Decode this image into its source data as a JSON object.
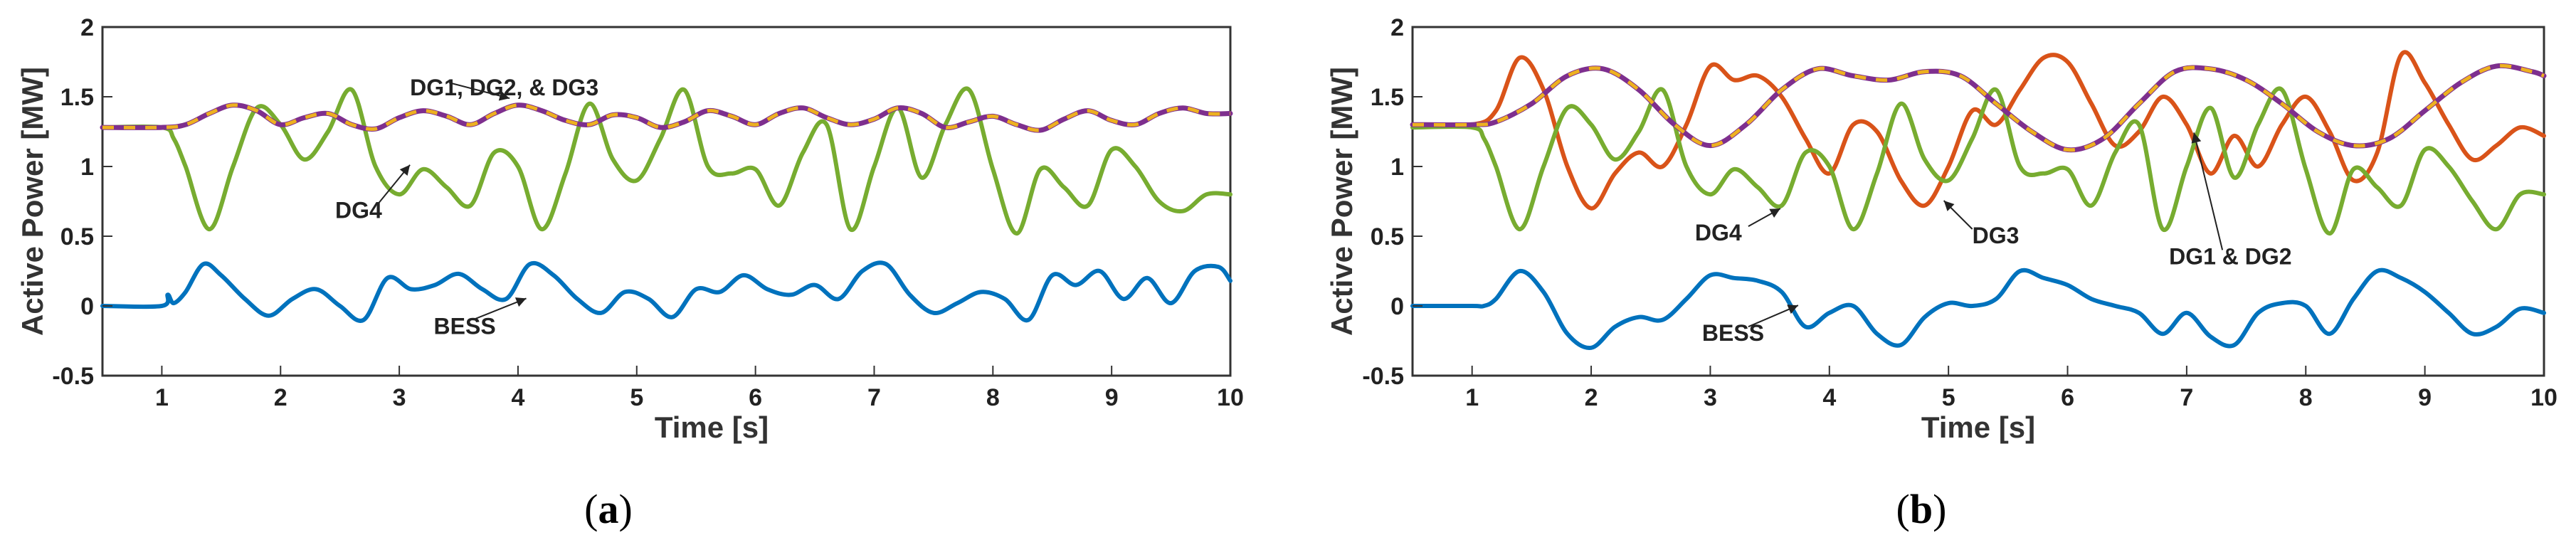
{
  "chart_data": [
    {
      "type": "line",
      "panel_label": "a",
      "xlabel": "Time [s]",
      "ylabel": "Active Power [MW]",
      "xlim": [
        0.5,
        10
      ],
      "ylim": [
        -0.5,
        2
      ],
      "xticks": [
        1,
        2,
        3,
        4,
        5,
        6,
        7,
        8,
        9,
        10
      ],
      "yticks": [
        -0.5,
        0,
        0.5,
        1,
        1.5,
        2
      ],
      "series": [
        {
          "name": "DG1, DG2, & DG3",
          "style": "dashed",
          "color": "#7e2f8e",
          "dash_color": "#edb120",
          "x": [
            0.5,
            1.0,
            1.2,
            1.4,
            1.6,
            1.8,
            2.0,
            2.2,
            2.4,
            2.6,
            2.8,
            3.0,
            3.2,
            3.4,
            3.6,
            3.8,
            4.0,
            4.2,
            4.4,
            4.6,
            4.8,
            5.0,
            5.2,
            5.4,
            5.6,
            5.8,
            6.0,
            6.2,
            6.4,
            6.6,
            6.8,
            7.0,
            7.2,
            7.4,
            7.6,
            7.8,
            8.0,
            8.2,
            8.4,
            8.6,
            8.8,
            9.0,
            9.2,
            9.4,
            9.6,
            9.8,
            10.0
          ],
          "y": [
            1.28,
            1.28,
            1.3,
            1.38,
            1.44,
            1.4,
            1.3,
            1.35,
            1.38,
            1.3,
            1.27,
            1.35,
            1.4,
            1.36,
            1.3,
            1.38,
            1.44,
            1.4,
            1.33,
            1.3,
            1.37,
            1.35,
            1.28,
            1.32,
            1.4,
            1.36,
            1.3,
            1.38,
            1.42,
            1.35,
            1.3,
            1.34,
            1.42,
            1.38,
            1.28,
            1.32,
            1.36,
            1.3,
            1.26,
            1.34,
            1.4,
            1.33,
            1.3,
            1.38,
            1.42,
            1.38,
            1.38
          ]
        },
        {
          "name": "DG4",
          "style": "solid",
          "color": "#77ac30",
          "x": [
            0.5,
            1.0,
            1.1,
            1.2,
            1.4,
            1.6,
            1.8,
            2.0,
            2.2,
            2.4,
            2.6,
            2.8,
            3.0,
            3.2,
            3.4,
            3.6,
            3.8,
            4.0,
            4.2,
            4.4,
            4.6,
            4.8,
            5.0,
            5.2,
            5.4,
            5.6,
            5.8,
            6.0,
            6.2,
            6.4,
            6.6,
            6.8,
            7.0,
            7.2,
            7.4,
            7.6,
            7.8,
            8.0,
            8.2,
            8.4,
            8.6,
            8.8,
            9.0,
            9.2,
            9.4,
            9.6,
            9.8,
            10.0
          ],
          "y": [
            1.28,
            1.28,
            1.2,
            1.0,
            0.55,
            1.0,
            1.42,
            1.3,
            1.05,
            1.25,
            1.55,
            1.0,
            0.8,
            0.98,
            0.85,
            0.72,
            1.1,
            1.0,
            0.55,
            0.95,
            1.45,
            1.05,
            0.9,
            1.2,
            1.55,
            1.0,
            0.95,
            0.98,
            0.72,
            1.1,
            1.3,
            0.55,
            1.0,
            1.42,
            0.92,
            1.3,
            1.55,
            0.98,
            0.52,
            0.98,
            0.85,
            0.72,
            1.12,
            1.0,
            0.75,
            0.68,
            0.8,
            0.8
          ]
        },
        {
          "name": "BESS",
          "style": "solid",
          "color": "#0072bd",
          "x": [
            0.5,
            1.0,
            1.05,
            1.1,
            1.2,
            1.35,
            1.5,
            1.7,
            1.9,
            2.1,
            2.3,
            2.5,
            2.7,
            2.9,
            3.1,
            3.3,
            3.5,
            3.7,
            3.9,
            4.1,
            4.3,
            4.5,
            4.7,
            4.9,
            5.1,
            5.3,
            5.5,
            5.7,
            5.9,
            6.1,
            6.3,
            6.5,
            6.7,
            6.9,
            7.1,
            7.3,
            7.5,
            7.7,
            7.9,
            8.1,
            8.3,
            8.5,
            8.7,
            8.9,
            9.1,
            9.3,
            9.5,
            9.7,
            9.9,
            10.0
          ],
          "y": [
            0.0,
            0.0,
            0.08,
            0.02,
            0.1,
            0.3,
            0.22,
            0.05,
            -0.07,
            0.05,
            0.12,
            0.0,
            -0.1,
            0.2,
            0.12,
            0.15,
            0.23,
            0.12,
            0.05,
            0.3,
            0.22,
            0.05,
            -0.05,
            0.1,
            0.05,
            -0.08,
            0.12,
            0.1,
            0.22,
            0.12,
            0.08,
            0.15,
            0.05,
            0.25,
            0.3,
            0.08,
            -0.05,
            0.02,
            0.1,
            0.05,
            -0.1,
            0.22,
            0.15,
            0.25,
            0.05,
            0.2,
            0.02,
            0.25,
            0.28,
            0.18
          ]
        }
      ],
      "annotations": [
        {
          "text": "DG1, DG2, & DG3",
          "x": 3.3,
          "y": 1.55
        },
        {
          "text": "DG4",
          "x": 2.7,
          "y": 0.68
        },
        {
          "text": "BESS",
          "x": 3.5,
          "y": -0.15
        }
      ]
    },
    {
      "type": "line",
      "panel_label": "b",
      "xlabel": "Time [s]",
      "ylabel": "Active Power [MW]",
      "xlim": [
        0.5,
        10
      ],
      "ylim": [
        -0.5,
        2
      ],
      "xticks": [
        1,
        2,
        3,
        4,
        5,
        6,
        7,
        8,
        9,
        10
      ],
      "yticks": [
        -0.5,
        0,
        0.5,
        1,
        1.5,
        2
      ],
      "series": [
        {
          "name": "DG1 & DG2",
          "style": "dashed",
          "color": "#7e2f8e",
          "dash_color": "#edb120",
          "x": [
            0.5,
            1.0,
            1.2,
            1.5,
            1.8,
            2.1,
            2.4,
            2.7,
            3.0,
            3.3,
            3.6,
            3.9,
            4.2,
            4.5,
            4.8,
            5.1,
            5.4,
            5.7,
            6.0,
            6.3,
            6.6,
            6.9,
            7.2,
            7.5,
            7.8,
            8.1,
            8.4,
            8.7,
            9.0,
            9.3,
            9.6,
            9.9,
            10.0
          ],
          "y": [
            1.3,
            1.3,
            1.32,
            1.45,
            1.65,
            1.7,
            1.55,
            1.3,
            1.15,
            1.3,
            1.55,
            1.7,
            1.65,
            1.62,
            1.68,
            1.65,
            1.45,
            1.25,
            1.12,
            1.2,
            1.45,
            1.68,
            1.7,
            1.62,
            1.45,
            1.25,
            1.15,
            1.2,
            1.4,
            1.6,
            1.72,
            1.68,
            1.65
          ]
        },
        {
          "name": "DG3",
          "style": "solid",
          "color": "#d95319",
          "x": [
            0.5,
            1.0,
            1.2,
            1.4,
            1.6,
            1.8,
            2.0,
            2.2,
            2.4,
            2.6,
            2.8,
            3.0,
            3.2,
            3.4,
            3.6,
            3.8,
            4.0,
            4.2,
            4.4,
            4.6,
            4.8,
            5.0,
            5.2,
            5.4,
            5.6,
            5.8,
            6.0,
            6.2,
            6.4,
            6.6,
            6.8,
            7.0,
            7.2,
            7.4,
            7.6,
            7.8,
            8.0,
            8.2,
            8.4,
            8.6,
            8.8,
            9.0,
            9.2,
            9.4,
            9.6,
            9.8,
            10.0
          ],
          "y": [
            1.3,
            1.3,
            1.4,
            1.78,
            1.55,
            1.0,
            0.7,
            0.95,
            1.1,
            1.0,
            1.3,
            1.72,
            1.62,
            1.65,
            1.5,
            1.2,
            0.95,
            1.3,
            1.25,
            0.9,
            0.72,
            1.0,
            1.4,
            1.3,
            1.55,
            1.78,
            1.75,
            1.45,
            1.15,
            1.25,
            1.5,
            1.3,
            0.95,
            1.22,
            1.0,
            1.3,
            1.5,
            1.25,
            0.9,
            1.1,
            1.8,
            1.6,
            1.3,
            1.05,
            1.15,
            1.28,
            1.22
          ]
        },
        {
          "name": "DG4",
          "style": "solid",
          "color": "#77ac30",
          "x": [
            0.5,
            1.0,
            1.1,
            1.2,
            1.4,
            1.6,
            1.8,
            2.0,
            2.2,
            2.4,
            2.6,
            2.8,
            3.0,
            3.2,
            3.4,
            3.6,
            3.8,
            4.0,
            4.2,
            4.4,
            4.6,
            4.8,
            5.0,
            5.2,
            5.4,
            5.6,
            5.8,
            6.0,
            6.2,
            6.4,
            6.6,
            6.8,
            7.0,
            7.2,
            7.4,
            7.6,
            7.8,
            8.0,
            8.2,
            8.4,
            8.6,
            8.8,
            9.0,
            9.2,
            9.4,
            9.6,
            9.8,
            10.0
          ],
          "y": [
            1.28,
            1.28,
            1.2,
            1.0,
            0.55,
            1.0,
            1.42,
            1.3,
            1.05,
            1.25,
            1.55,
            1.0,
            0.8,
            0.98,
            0.85,
            0.72,
            1.1,
            1.0,
            0.55,
            0.95,
            1.45,
            1.05,
            0.9,
            1.2,
            1.55,
            1.0,
            0.95,
            0.98,
            0.72,
            1.1,
            1.3,
            0.55,
            1.0,
            1.42,
            0.92,
            1.3,
            1.55,
            0.98,
            0.52,
            0.98,
            0.85,
            0.72,
            1.12,
            1.0,
            0.75,
            0.55,
            0.8,
            0.8
          ]
        },
        {
          "name": "BESS",
          "style": "solid",
          "color": "#0072bd",
          "x": [
            0.5,
            1.0,
            1.1,
            1.2,
            1.4,
            1.6,
            1.8,
            2.0,
            2.2,
            2.4,
            2.6,
            2.8,
            3.0,
            3.2,
            3.4,
            3.6,
            3.8,
            4.0,
            4.2,
            4.4,
            4.6,
            4.8,
            5.0,
            5.2,
            5.4,
            5.6,
            5.8,
            6.0,
            6.2,
            6.4,
            6.6,
            6.8,
            7.0,
            7.2,
            7.4,
            7.6,
            7.8,
            8.0,
            8.2,
            8.4,
            8.6,
            8.8,
            9.0,
            9.2,
            9.4,
            9.6,
            9.8,
            10.0
          ],
          "y": [
            0.0,
            0.0,
            0.0,
            0.05,
            0.25,
            0.1,
            -0.2,
            -0.3,
            -0.15,
            -0.08,
            -0.1,
            0.05,
            0.22,
            0.2,
            0.18,
            0.1,
            -0.15,
            -0.05,
            0.0,
            -0.2,
            -0.28,
            -0.08,
            0.02,
            0.0,
            0.05,
            0.25,
            0.2,
            0.15,
            0.05,
            0.0,
            -0.05,
            -0.2,
            -0.05,
            -0.22,
            -0.28,
            -0.05,
            0.02,
            0.0,
            -0.2,
            0.05,
            0.25,
            0.2,
            0.1,
            -0.05,
            -0.2,
            -0.15,
            -0.02,
            -0.05
          ]
        }
      ],
      "annotations": [
        {
          "text": "DG4",
          "x": 3.2,
          "y": 0.52
        },
        {
          "text": "DG3",
          "x": 5.2,
          "y": 0.5
        },
        {
          "text": "DG1 & DG2",
          "x": 7.3,
          "y": 0.35
        },
        {
          "text": "BESS",
          "x": 3.2,
          "y": -0.2
        }
      ]
    }
  ],
  "captions": [
    {
      "open": "(",
      "letter": "a",
      "close": ")"
    },
    {
      "open": "(",
      "letter": "b",
      "close": ")"
    }
  ]
}
